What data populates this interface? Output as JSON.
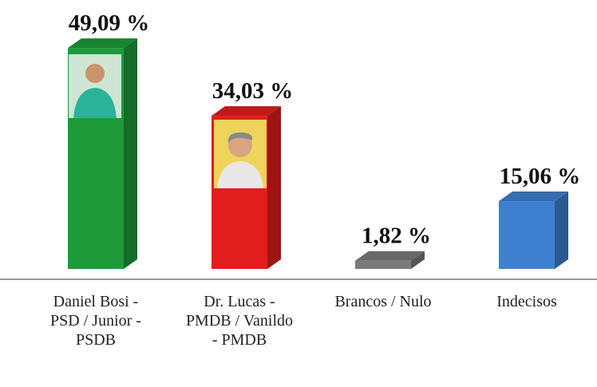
{
  "chart_data": {
    "type": "bar",
    "categories": [
      "Daniel Bosi - PSD / Junior - PSDB",
      "Dr. Lucas - PMDB / Vanildo - PMDB",
      "Brancos / Nulo",
      "Indecisos"
    ],
    "values": [
      49.09,
      34.03,
      1.82,
      15.06
    ],
    "value_labels": [
      "49,09 %",
      "34,03 %",
      "1,82 %",
      "15,06 %"
    ],
    "colors": [
      "#1f9a3a",
      "#e21d1d",
      "#7a7a7a",
      "#3f7fcf"
    ]
  }
}
